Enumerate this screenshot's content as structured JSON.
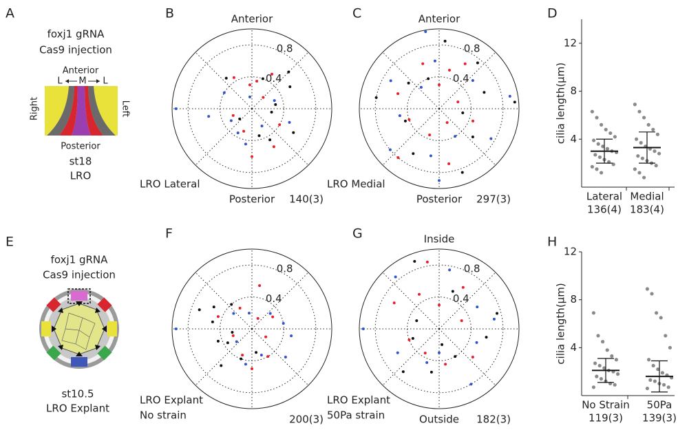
{
  "diagrams": [
    {
      "letter": "A",
      "lines": [
        "foxj1 gRNA",
        "Cas9 injection"
      ],
      "top": "Anterior",
      "axis": [
        "L",
        "M",
        "L"
      ],
      "sides": [
        "Right",
        "Left"
      ],
      "bottom": "Posterior",
      "caption": [
        "st18",
        "LRO"
      ]
    },
    {
      "letter": "E",
      "lines": [
        "foxj1 gRNA",
        "Cas9 injection"
      ],
      "caption": [
        "st10.5",
        "LRO Explant"
      ]
    }
  ],
  "chart_data": [
    {
      "type": "polar",
      "letter": "B",
      "top": "Anterior",
      "bottom": "Posterior",
      "label": [
        "LRO Lateral"
      ],
      "count": "140(3)",
      "rlim": [
        0,
        1
      ],
      "rticks": [
        0.4,
        0.8
      ],
      "series": [
        {
          "color": "#e8202a",
          "theta": [
            80,
            95,
            60,
            120,
            250,
            300,
            45,
            200,
            270,
            330
          ],
          "r": [
            0.35,
            0.3,
            0.5,
            0.45,
            0.3,
            0.55,
            0.2,
            0.25,
            0.6,
            0.4
          ]
        },
        {
          "color": "#2f55c8",
          "theta": [
            180,
            210,
            240,
            300,
            150,
            20,
            100,
            260,
            340,
            190
          ],
          "r": [
            0.95,
            0.3,
            0.35,
            0.25,
            0.4,
            0.3,
            0.15,
            0.45,
            0.5,
            0.55
          ]
        },
        {
          "color": "#111111",
          "theta": [
            10,
            30,
            330,
            300,
            70,
            220,
            285,
            350,
            130,
            45
          ],
          "r": [
            0.3,
            0.55,
            0.6,
            0.45,
            0.4,
            0.2,
            0.35,
            0.25,
            0.5,
            0.65
          ]
        }
      ]
    },
    {
      "type": "polar",
      "letter": "C",
      "top": "Anterior",
      "bottom": "Posterior",
      "label": [
        "LRO Medial"
      ],
      "count": "297(3)",
      "rlim": [
        0,
        1
      ],
      "rticks": [
        0.4,
        0.8
      ],
      "series": [
        {
          "color": "#e8202a",
          "theta": [
            90,
            75,
            110,
            200,
            250,
            280,
            20,
            340,
            160,
            300,
            60,
            230
          ],
          "r": [
            0.3,
            0.5,
            0.6,
            0.4,
            0.35,
            0.7,
            0.25,
            0.45,
            0.55,
            0.2,
            0.65,
            0.8
          ]
        },
        {
          "color": "#2f55c8",
          "theta": [
            100,
            150,
            190,
            220,
            260,
            300,
            330,
            10,
            40,
            130,
            270,
            95
          ],
          "r": [
            0.98,
            0.7,
            0.5,
            0.8,
            0.6,
            0.4,
            0.75,
            0.9,
            0.55,
            0.35,
            0.9,
            0.6
          ]
        },
        {
          "color": "#111111",
          "theta": [
            85,
            50,
            20,
            350,
            320,
            200,
            170,
            140,
            240,
            290,
            5,
            110
          ],
          "r": [
            0.85,
            0.75,
            0.6,
            0.3,
            0.55,
            0.45,
            0.8,
            0.5,
            0.65,
            0.85,
            0.95,
            0.4
          ]
        }
      ]
    },
    {
      "type": "dot",
      "letter": "D",
      "ylabel": "cilia length(μm)",
      "ylim": [
        0,
        14
      ],
      "yticks": [
        4,
        8,
        12
      ],
      "color": "#8a8a8a",
      "groups": [
        {
          "name": "Lateral",
          "count": "136(4)",
          "mean": 3.0,
          "sd": 1.0,
          "values": [
            6.3,
            5.8,
            5.2,
            4.8,
            4.5,
            4.2,
            3.9,
            3.6,
            3.4,
            3.2,
            3.0,
            2.9,
            2.7,
            2.5,
            2.3,
            2.1,
            1.9,
            1.7,
            1.5,
            1.2
          ]
        },
        {
          "name": "Medial",
          "count": "183(4)",
          "mean": 3.3,
          "sd": 1.3,
          "values": [
            6.9,
            6.3,
            5.8,
            5.2,
            4.8,
            4.4,
            4.0,
            3.7,
            3.4,
            3.2,
            3.0,
            2.8,
            2.6,
            2.4,
            2.2,
            2.0,
            1.8,
            1.5,
            1.2,
            0.8
          ]
        }
      ]
    },
    {
      "type": "polar",
      "letter": "F",
      "label": [
        "LRO Explant",
        "No strain"
      ],
      "count": "200(3)",
      "rlim": [
        0,
        1
      ],
      "rticks": [
        0.4,
        0.8
      ],
      "series": [
        {
          "color": "#e8202a",
          "theta": [
            80,
            120,
            200,
            250,
            300,
            330,
            30,
            160,
            270,
            60
          ],
          "r": [
            0.55,
            0.3,
            0.25,
            0.35,
            0.4,
            0.2,
            0.3,
            0.45,
            0.5,
            0.15
          ]
        },
        {
          "color": "#2f55c8",
          "theta": [
            10,
            40,
            180,
            220,
            290,
            350,
            100,
            140,
            260,
            320
          ],
          "r": [
            0.4,
            0.3,
            0.95,
            0.25,
            0.35,
            0.5,
            0.2,
            0.3,
            0.45,
            0.55
          ]
        },
        {
          "color": "#111111",
          "theta": [
            150,
            170,
            200,
            210,
            230,
            250,
            190,
            160,
            280,
            130
          ],
          "r": [
            0.55,
            0.5,
            0.45,
            0.35,
            0.6,
            0.4,
            0.25,
            0.7,
            0.3,
            0.4
          ]
        }
      ]
    },
    {
      "type": "polar",
      "letter": "G",
      "top": "Inside",
      "bottom": "Outside",
      "label": [
        "LRO Explant",
        "50Pa strain"
      ],
      "count": "182(3)",
      "rlim": [
        0,
        1
      ],
      "rticks": [
        0.4,
        0.8
      ],
      "series": [
        {
          "color": "#e8202a",
          "theta": [
            90,
            120,
            150,
            200,
            240,
            280,
            320,
            20,
            60,
            100
          ],
          "r": [
            0.3,
            0.5,
            0.65,
            0.4,
            0.35,
            0.45,
            0.55,
            0.3,
            0.6,
            0.85
          ]
        },
        {
          "color": "#2f55c8",
          "theta": [
            80,
            30,
            180,
            210,
            250,
            300,
            340,
            10,
            130,
            270
          ],
          "r": [
            0.75,
            0.55,
            0.95,
            0.6,
            0.45,
            0.8,
            0.5,
            0.7,
            0.85,
            0.3
          ]
        },
        {
          "color": "#111111",
          "theta": [
            110,
            70,
            200,
            230,
            260,
            300,
            350,
            15,
            160,
            280
          ],
          "r": [
            0.9,
            0.5,
            0.35,
            0.7,
            0.55,
            0.4,
            0.6,
            0.75,
            0.3,
            0.2
          ]
        }
      ]
    },
    {
      "type": "dot",
      "letter": "H",
      "ylabel": "cilia length(μm)",
      "ylim": [
        0,
        12
      ],
      "yticks": [
        4,
        8,
        12
      ],
      "color": "#8a8a8a",
      "groups": [
        {
          "name": "No Strain",
          "count": "119(3)",
          "mean": 2.1,
          "sd": 1.0,
          "values": [
            6.9,
            5.0,
            4.5,
            3.8,
            3.3,
            3.0,
            2.7,
            2.5,
            2.3,
            2.1,
            2.0,
            1.8,
            1.6,
            1.4,
            1.2,
            1.0,
            0.9,
            0.7
          ]
        },
        {
          "name": "50Pa",
          "count": "139(3)",
          "mean": 1.6,
          "sd": 1.3,
          "values": [
            8.9,
            8.5,
            6.9,
            6.5,
            5.0,
            4.0,
            3.0,
            2.5,
            2.2,
            1.9,
            1.7,
            1.5,
            1.3,
            1.2,
            1.0,
            0.9,
            0.7,
            0.6
          ]
        }
      ]
    }
  ]
}
